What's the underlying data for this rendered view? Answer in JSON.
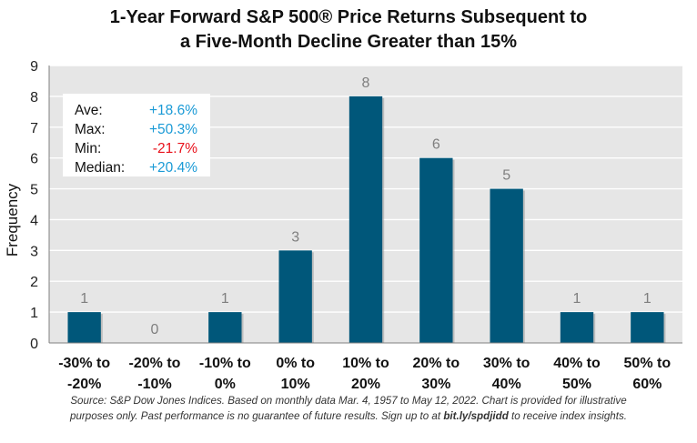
{
  "chart_data": {
    "type": "bar",
    "title_line1": "1-Year Forward S&P 500® Price Returns Subsequent to",
    "title_line2": "a Five-Month Decline Greater than 15%",
    "ylabel": "Frequency",
    "ylim": [
      0,
      9
    ],
    "yticks": [
      "0",
      "1",
      "2",
      "3",
      "4",
      "5",
      "6",
      "7",
      "8",
      "9"
    ],
    "categories": [
      [
        "-30% to",
        "-20%"
      ],
      [
        "-20% to",
        "-10%"
      ],
      [
        "-10% to",
        "0%"
      ],
      [
        "0% to",
        "10%"
      ],
      [
        "10% to",
        "20%"
      ],
      [
        "20% to",
        "30%"
      ],
      [
        "30% to",
        "40%"
      ],
      [
        "40% to",
        "50%"
      ],
      [
        "50% to",
        "60%"
      ]
    ],
    "values": [
      1,
      0,
      1,
      3,
      8,
      6,
      5,
      1,
      1
    ],
    "grid": true,
    "bar_color": "#00577a",
    "stats": [
      {
        "label": "Ave:",
        "value": "+18.6%",
        "color": "#1a9ad6"
      },
      {
        "label": "Max:",
        "value": "+50.3%",
        "color": "#1a9ad6"
      },
      {
        "label": "Min:",
        "value": "-21.7%",
        "color": "#e8101a"
      },
      {
        "label": "Median:",
        "value": "+20.4%",
        "color": "#1a9ad6"
      }
    ]
  },
  "footnote": {
    "line1": "Source: S&P Dow Jones Indices.  Based on monthly data Mar. 4, 1957 to May 12, 2022.  Chart is provided for illustrative",
    "line2_start": "purposes only. Past performance is no guarantee of future results. Sign up to at ",
    "link": "bit.ly/spdjidd",
    "line2_end": " to receive index insights."
  }
}
